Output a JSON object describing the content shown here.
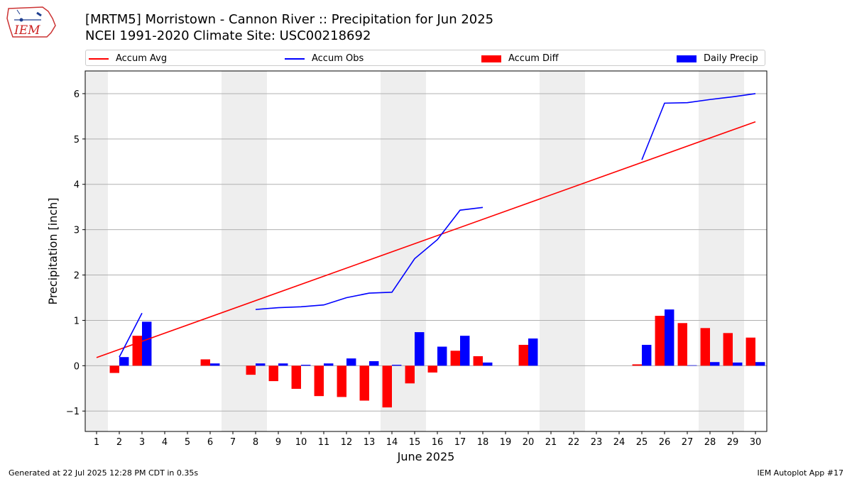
{
  "logo_text": "IEM",
  "footer": {
    "generated": "Generated at 22 Jul 2025 12:28 PM CDT in 0.35s",
    "app": "IEM Autoplot App #17"
  },
  "colors": {
    "accum_avg": "#ff0000",
    "accum_obs": "#0000ff",
    "accum_diff": "#ff0000",
    "daily_precip": "#0000ff",
    "weekend_band": "#eeeeee",
    "grid": "#b0b0b0"
  },
  "chart_data": {
    "type": "bar",
    "title": "[MRTM5] Morristown - Cannon River :: Precipitation for Jun 2025",
    "subtitle": "NCEI 1991-2020 Climate Site: USC00218692",
    "xlabel": "June 2025",
    "ylabel": "Precipitation [inch]",
    "xlim": [
      0.5,
      30.5
    ],
    "ylim": [
      -1.45,
      6.5
    ],
    "xticks": [
      1,
      2,
      3,
      4,
      5,
      6,
      7,
      8,
      9,
      10,
      11,
      12,
      13,
      14,
      15,
      16,
      17,
      18,
      19,
      20,
      21,
      22,
      23,
      24,
      25,
      26,
      27,
      28,
      29,
      30
    ],
    "yticks": [
      -1,
      0,
      1,
      2,
      3,
      4,
      5,
      6
    ],
    "grid": "horizontal",
    "legend_placement": "top",
    "legend": [
      "Accum Avg",
      "Accum Obs",
      "Accum Diff",
      "Daily Precip"
    ],
    "weekend_days": [
      1,
      7,
      8,
      14,
      15,
      21,
      22,
      28,
      29
    ],
    "series": [
      {
        "name": "Accum Avg",
        "kind": "line",
        "x": [
          1,
          30
        ],
        "values": [
          0.18,
          5.38
        ]
      },
      {
        "name": "Accum Obs",
        "kind": "line",
        "segments": [
          {
            "x": [
              2,
              3
            ],
            "values": [
              0.19,
              1.16
            ]
          },
          {
            "x": [
              8,
              9,
              10,
              11,
              12,
              13,
              14,
              15,
              16,
              17,
              18
            ],
            "values": [
              1.24,
              1.28,
              1.3,
              1.34,
              1.5,
              1.6,
              1.62,
              2.36,
              2.78,
              3.43,
              3.49
            ]
          },
          {
            "x": [
              25,
              26,
              27,
              28,
              29,
              30
            ],
            "values": [
              4.54,
              5.79,
              5.8,
              5.87,
              5.93,
              6.0
            ]
          }
        ]
      },
      {
        "name": "Accum Diff",
        "kind": "bar",
        "x": [
          2,
          3,
          6,
          8,
          9,
          10,
          11,
          12,
          13,
          14,
          15,
          16,
          17,
          18,
          20,
          25,
          26,
          27,
          28,
          29,
          30
        ],
        "values": [
          -0.16,
          0.66,
          0.14,
          -0.2,
          -0.34,
          -0.51,
          -0.67,
          -0.69,
          -0.77,
          -0.92,
          -0.39,
          -0.15,
          0.33,
          0.21,
          0.46,
          0.03,
          1.1,
          0.94,
          0.83,
          0.72,
          0.62
        ]
      },
      {
        "name": "Daily Precip",
        "kind": "bar",
        "x": [
          2,
          3,
          6,
          8,
          9,
          10,
          11,
          12,
          13,
          14,
          15,
          16,
          17,
          18,
          20,
          25,
          26,
          27,
          28,
          29,
          30
        ],
        "values": [
          0.19,
          0.97,
          0.05,
          0.05,
          0.05,
          0.02,
          0.05,
          0.16,
          0.1,
          0.02,
          0.74,
          0.42,
          0.66,
          0.07,
          0.6,
          0.46,
          1.24,
          0.01,
          0.08,
          0.07,
          0.08
        ]
      }
    ]
  }
}
